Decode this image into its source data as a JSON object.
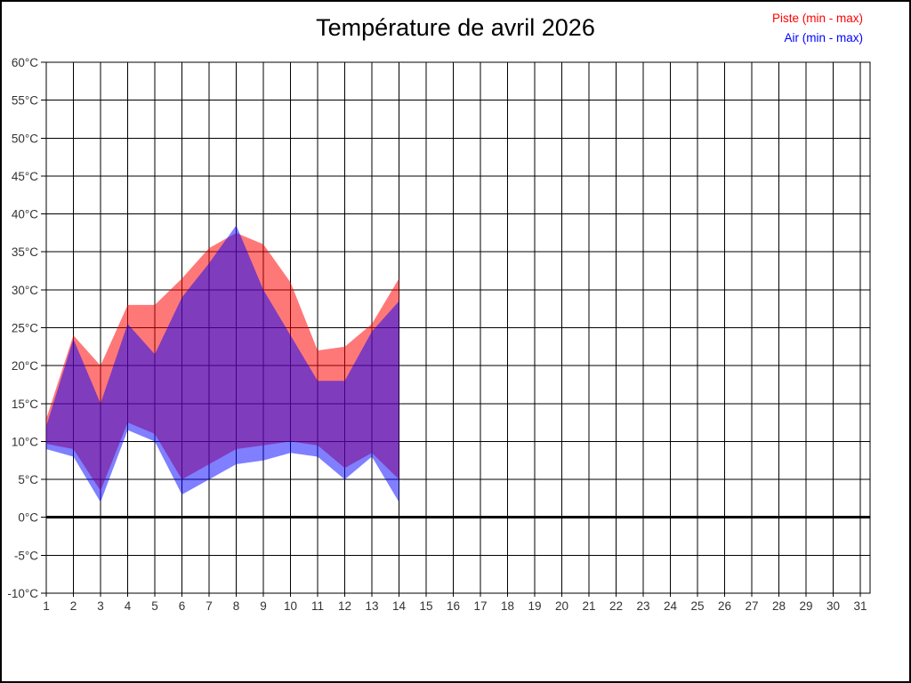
{
  "title": "Température de avril 2026",
  "legend": {
    "piste_label": "Piste (min - max)",
    "air_label": "Air (min - max)"
  },
  "chart_data": {
    "type": "area",
    "subtype": "min-max range bands, overlapping translucent fills",
    "title": "Température de avril 2026",
    "xlabel": "",
    "ylabel": "",
    "xlim": [
      1,
      31
    ],
    "ylim": [
      -10,
      60
    ],
    "y_tick_step": 5,
    "grid": true,
    "legend_position": "top-right",
    "zero_line": {
      "value": 0,
      "color": "#000000",
      "width": 3
    },
    "x": [
      1,
      2,
      3,
      4,
      5,
      6,
      7,
      8,
      9,
      10,
      11,
      12,
      13,
      14
    ],
    "series": [
      {
        "name": "Piste (min - max)",
        "color": "#ff0000",
        "fill_opacity": 0.53,
        "rendered_fill_on_white": "#ff7878",
        "min": [
          9.7,
          9,
          3.5,
          12.5,
          11,
          5,
          7,
          9,
          9.5,
          10,
          9.5,
          6.5,
          8.5,
          5
        ],
        "max": [
          13,
          24,
          20,
          28,
          28,
          31.5,
          35.5,
          37.5,
          36,
          31,
          22,
          22.5,
          25.5,
          31.5
        ]
      },
      {
        "name": "Air (min - max)",
        "color": "#0000ff",
        "fill_opacity": 0.5,
        "rendered_fill_on_white": "#8080ff",
        "min": [
          9,
          8,
          2,
          11.5,
          10,
          3,
          5,
          7,
          7.5,
          8.5,
          8,
          5,
          8,
          2
        ],
        "max": [
          12,
          23.5,
          15,
          25.5,
          21.5,
          29,
          33.5,
          38.5,
          30,
          24,
          18,
          18,
          24.5,
          28.5
        ]
      }
    ],
    "overlap_rendered_color": "#803cbc",
    "x_tick_labels": [
      "1",
      "2",
      "3",
      "4",
      "5",
      "6",
      "7",
      "8",
      "9",
      "10",
      "11",
      "12",
      "13",
      "14",
      "15",
      "16",
      "17",
      "18",
      "19",
      "20",
      "21",
      "22",
      "23",
      "24",
      "25",
      "26",
      "27",
      "28",
      "29",
      "30",
      "31"
    ],
    "y_tick_labels": [
      "60°C",
      "55°C",
      "50°C",
      "45°C",
      "40°C",
      "35°C",
      "30°C",
      "25°C",
      "20°C",
      "15°C",
      "10°C",
      "5°C",
      "0°C",
      "-5°C",
      "-10°C"
    ],
    "grid_color": "#000000",
    "axis_label_color": "#333333"
  }
}
